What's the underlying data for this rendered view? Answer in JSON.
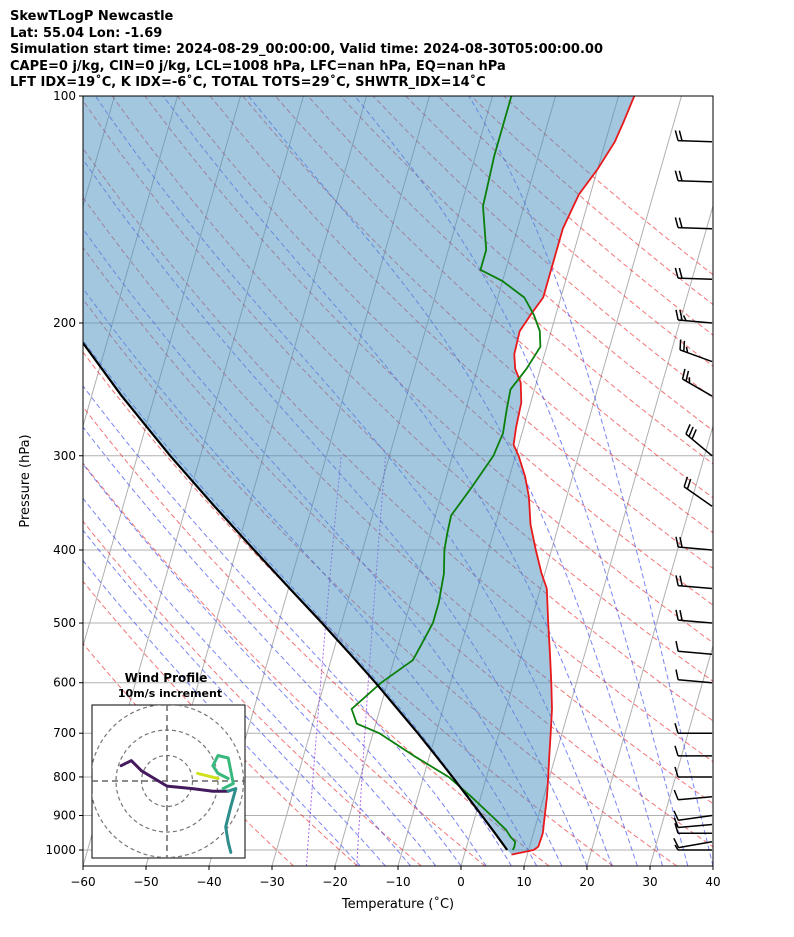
{
  "header": {
    "title": "SkewTLogP Newcastle",
    "location": "Lat: 55.04   Lon: -1.69",
    "times": "Simulation start time: 2024-08-29_00:00:00, Valid time: 2024-08-30T05:00:00.00",
    "convective": "CAPE=0 j/kg, CIN=0 j/kg, LCL=1008 hPa, LFC=nan hPa, EQ=nan hPa",
    "indices": "LFT IDX=19˚C, K IDX=-6˚C, TOTAL TOTS=29˚C, SHWTR_IDX=14˚C"
  },
  "chart_data": {
    "type": "line",
    "xlabel": "Temperature (˚C)",
    "ylabel": "Pressure (hPa)",
    "xlim": [
      -60,
      40
    ],
    "ylim": [
      1050,
      100
    ],
    "y_scale": "log",
    "grid": true,
    "x_ticks": [
      -60,
      -50,
      -40,
      -30,
      -20,
      -10,
      0,
      10,
      20,
      30,
      40
    ],
    "x_tick_labels": [
      "−60",
      "−50",
      "−40",
      "−30",
      "−20",
      "−10",
      "0",
      "10",
      "20",
      "30",
      "40"
    ],
    "y_ticks": [
      1000,
      900,
      800,
      700,
      600,
      500,
      400,
      300,
      200,
      100
    ],
    "y_tick_labels": [
      "1000",
      "900",
      "800",
      "700",
      "600",
      "500",
      "400",
      "300",
      "200",
      "100"
    ],
    "series": [
      {
        "color": "#e8191b",
        "points": [
          [
            1014,
            7.5
          ],
          [
            1000,
            10.8
          ],
          [
            990,
            11.4
          ],
          [
            950,
            11.5
          ],
          [
            900,
            11.0
          ],
          [
            850,
            10.5
          ],
          [
            800,
            9.8
          ],
          [
            750,
            9.0
          ],
          [
            700,
            8.2
          ],
          [
            650,
            7.3
          ],
          [
            600,
            6.0
          ],
          [
            550,
            4.5
          ],
          [
            500,
            2.8
          ],
          [
            450,
            1.0
          ],
          [
            430,
            -0.5
          ],
          [
            400,
            -2.5
          ],
          [
            370,
            -4.5
          ],
          [
            340,
            -6.0
          ],
          [
            320,
            -7.5
          ],
          [
            300,
            -9.5
          ],
          [
            290,
            -10.8
          ],
          [
            275,
            -11.2
          ],
          [
            255,
            -11.5
          ],
          [
            240,
            -12.5
          ],
          [
            230,
            -14.0
          ],
          [
            220,
            -14.8
          ],
          [
            205,
            -15.0
          ],
          [
            195,
            -14.0
          ],
          [
            185,
            -12.8
          ],
          [
            170,
            -12.8
          ],
          [
            150,
            -12.8
          ],
          [
            135,
            -11.8
          ],
          [
            125,
            -10.0
          ],
          [
            115,
            -8.5
          ],
          [
            108,
            -8.0
          ],
          [
            100,
            -7.5
          ]
        ]
      },
      {
        "color": "#0a7f0a",
        "points": [
          [
            1000,
            7.5
          ],
          [
            990,
            7.6
          ],
          [
            975,
            7.5
          ],
          [
            960,
            6.5
          ],
          [
            940,
            5.5
          ],
          [
            900,
            2.5
          ],
          [
            850,
            -1.5
          ],
          [
            800,
            -6.0
          ],
          [
            750,
            -12.5
          ],
          [
            700,
            -19.0
          ],
          [
            680,
            -23.0
          ],
          [
            650,
            -24.5
          ],
          [
            600,
            -21.0
          ],
          [
            560,
            -17.0
          ],
          [
            540,
            -16.5
          ],
          [
            500,
            -15.5
          ],
          [
            470,
            -15.5
          ],
          [
            430,
            -16.0
          ],
          [
            400,
            -17.0
          ],
          [
            380,
            -17.3
          ],
          [
            360,
            -17.5
          ],
          [
            330,
            -15.5
          ],
          [
            300,
            -13.5
          ],
          [
            280,
            -13.0
          ],
          [
            260,
            -13.5
          ],
          [
            245,
            -13.8
          ],
          [
            230,
            -12.2
          ],
          [
            215,
            -11.0
          ],
          [
            205,
            -11.8
          ],
          [
            195,
            -13.5
          ],
          [
            185,
            -15.8
          ],
          [
            176,
            -20.0
          ],
          [
            170,
            -24.0
          ],
          [
            160,
            -24.0
          ],
          [
            140,
            -26.5
          ],
          [
            120,
            -27.0
          ],
          [
            100,
            -27.0
          ]
        ]
      },
      {
        "color": "#000000",
        "points": [
          [
            1000,
            6.6
          ],
          [
            950,
            3.9
          ],
          [
            900,
            1.0
          ],
          [
            850,
            -2.1
          ],
          [
            800,
            -5.4
          ],
          [
            750,
            -9.0
          ],
          [
            700,
            -12.9
          ],
          [
            650,
            -17.2
          ],
          [
            600,
            -21.9
          ],
          [
            550,
            -27.2
          ],
          [
            500,
            -33.1
          ],
          [
            450,
            -39.8
          ],
          [
            400,
            -47.2
          ],
          [
            350,
            -55.5
          ],
          [
            300,
            -64.8
          ],
          [
            250,
            -75.2
          ],
          [
            200,
            -87.0
          ],
          [
            150,
            -100.5
          ],
          [
            100,
            -116.5
          ]
        ]
      }
    ],
    "wind_barbs": [
      {
        "pressure": 1000,
        "speed_kt": 5,
        "direction_deg": 270
      },
      {
        "pressure": 975,
        "speed_kt": 10,
        "direction_deg": 260
      },
      {
        "pressure": 950,
        "speed_kt": 10,
        "direction_deg": 270
      },
      {
        "pressure": 925,
        "speed_kt": 10,
        "direction_deg": 265
      },
      {
        "pressure": 900,
        "speed_kt": 10,
        "direction_deg": 262
      },
      {
        "pressure": 850,
        "speed_kt": 10,
        "direction_deg": 265
      },
      {
        "pressure": 800,
        "speed_kt": 10,
        "direction_deg": 270
      },
      {
        "pressure": 750,
        "speed_kt": 10,
        "direction_deg": 270
      },
      {
        "pressure": 700,
        "speed_kt": 10,
        "direction_deg": 270
      },
      {
        "pressure": 600,
        "speed_kt": 10,
        "direction_deg": 275
      },
      {
        "pressure": 550,
        "speed_kt": 10,
        "direction_deg": 275
      },
      {
        "pressure": 500,
        "speed_kt": 20,
        "direction_deg": 275
      },
      {
        "pressure": 450,
        "speed_kt": 20,
        "direction_deg": 275
      },
      {
        "pressure": 400,
        "speed_kt": 20,
        "direction_deg": 275
      },
      {
        "pressure": 350,
        "speed_kt": 20,
        "direction_deg": 305
      },
      {
        "pressure": 300,
        "speed_kt": 30,
        "direction_deg": 310
      },
      {
        "pressure": 250,
        "speed_kt": 25,
        "direction_deg": 300
      },
      {
        "pressure": 225,
        "speed_kt": 25,
        "direction_deg": 290
      },
      {
        "pressure": 200,
        "speed_kt": 25,
        "direction_deg": 275
      },
      {
        "pressure": 175,
        "speed_kt": 20,
        "direction_deg": 272
      },
      {
        "pressure": 150,
        "speed_kt": 20,
        "direction_deg": 272
      },
      {
        "pressure": 130,
        "speed_kt": 20,
        "direction_deg": 272
      },
      {
        "pressure": 115,
        "speed_kt": 20,
        "direction_deg": 272
      }
    ],
    "hodograph": {
      "title": "Wind Profile",
      "subtitle": "10m/s increment",
      "rings_ms": [
        10,
        20,
        30
      ],
      "range_ms": 30,
      "segments": [
        {
          "color": "#45195e",
          "points": [
            [
              -18,
              6
            ],
            [
              -14,
              8
            ],
            [
              -10,
              4
            ],
            [
              -5,
              1
            ],
            [
              0,
              -2
            ],
            [
              10,
              -3
            ],
            [
              18,
              -4
            ],
            [
              24,
              -4
            ]
          ]
        },
        {
          "color": "#2e8e8c",
          "points": [
            [
              24,
              -4
            ],
            [
              27,
              -3
            ],
            [
              25,
              -10
            ],
            [
              23,
              -18
            ],
            [
              24,
              -24
            ],
            [
              25,
              -28
            ]
          ]
        },
        {
          "color": "#38b87c",
          "points": [
            [
              22,
              -3
            ],
            [
              26,
              -1
            ],
            [
              25,
              4
            ],
            [
              24,
              9
            ],
            [
              20,
              10
            ],
            [
              18,
              6
            ],
            [
              20,
              3
            ],
            [
              24,
              1
            ]
          ]
        },
        {
          "color": "#d0e11c",
          "points": [
            [
              12,
              3
            ],
            [
              16,
              2
            ],
            [
              20,
              1
            ]
          ]
        }
      ]
    }
  }
}
